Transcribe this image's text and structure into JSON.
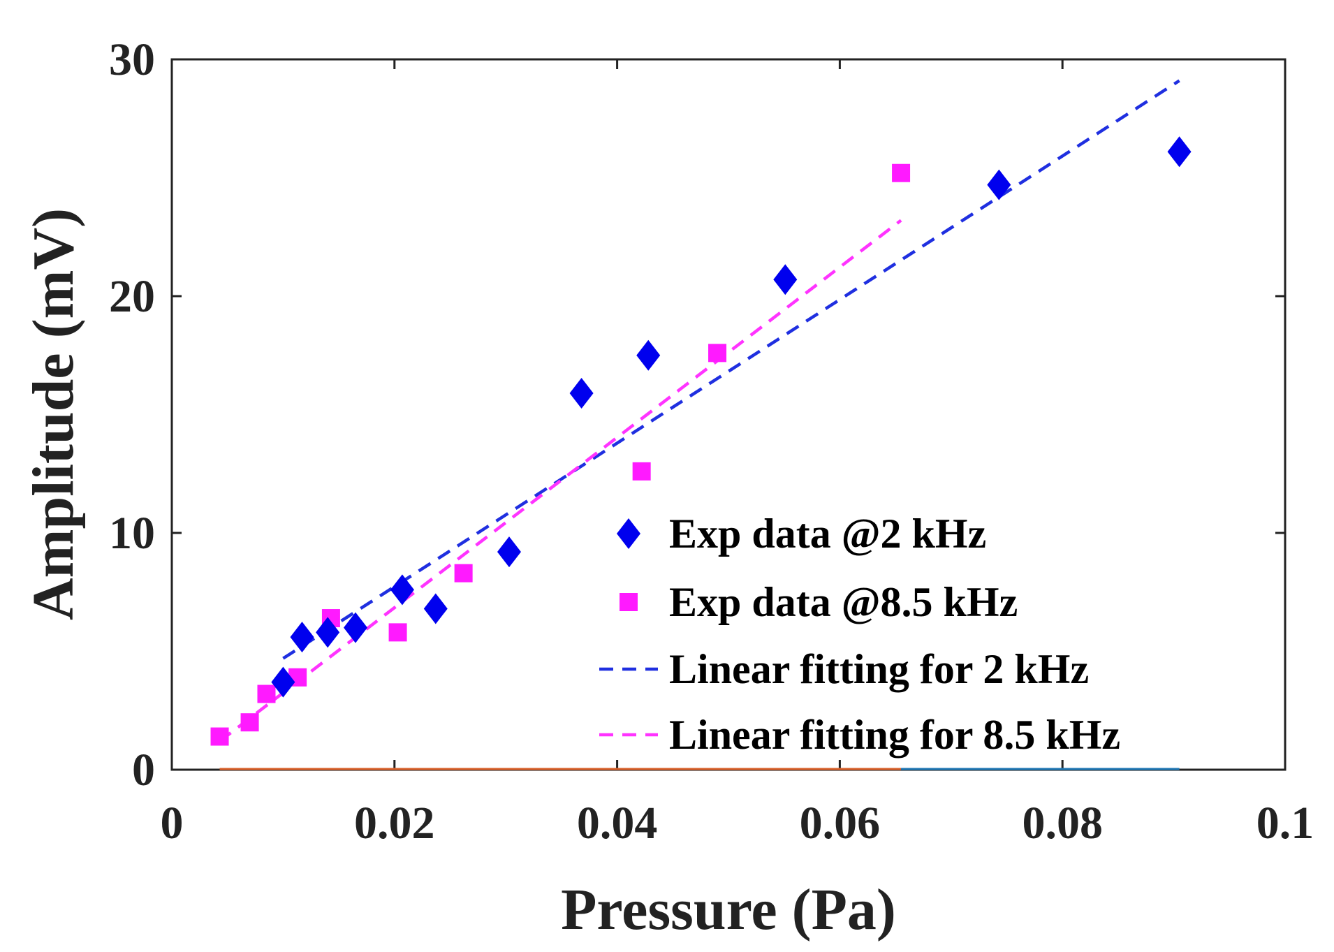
{
  "chart_data": {
    "type": "scatter",
    "title": "",
    "xlabel": "Pressure (Pa)",
    "ylabel": "Amplitude (mV)",
    "xlim": [
      0,
      0.1
    ],
    "ylim": [
      0,
      30
    ],
    "x_ticks": [
      0,
      0.02,
      0.04,
      0.06,
      0.08,
      0.1
    ],
    "x_tick_labels": [
      "0",
      "0.02",
      "0.04",
      "0.06",
      "0.08",
      "0.1"
    ],
    "y_ticks": [
      0,
      10,
      20,
      30
    ],
    "y_tick_labels": [
      "0",
      "10",
      "20",
      "30"
    ],
    "grid": false,
    "legend_position": "bottom-right",
    "series": [
      {
        "name": "Exp data @2 kHz",
        "kind": "scatter",
        "marker": "diamond",
        "color": "#0000ee",
        "points": [
          [
            0.01,
            3.7
          ],
          [
            0.0117,
            5.6
          ],
          [
            0.014,
            5.8
          ],
          [
            0.0165,
            6.0
          ],
          [
            0.0207,
            7.6
          ],
          [
            0.0237,
            6.8
          ],
          [
            0.0303,
            9.2
          ],
          [
            0.0368,
            15.9
          ],
          [
            0.0428,
            17.5
          ],
          [
            0.0551,
            20.7
          ],
          [
            0.0743,
            24.7
          ],
          [
            0.0905,
            26.1
          ]
        ]
      },
      {
        "name": "Exp data @8.5 kHz",
        "kind": "scatter",
        "marker": "square",
        "color": "#ff1aff",
        "points": [
          [
            0.0043,
            1.4
          ],
          [
            0.007,
            2.0
          ],
          [
            0.0085,
            3.2
          ],
          [
            0.0113,
            3.9
          ],
          [
            0.0143,
            6.4
          ],
          [
            0.0203,
            5.8
          ],
          [
            0.0262,
            8.3
          ],
          [
            0.0422,
            12.6
          ],
          [
            0.049,
            17.6
          ],
          [
            0.0655,
            25.2
          ]
        ]
      },
      {
        "name": "Linear fitting for 2 kHz",
        "kind": "line",
        "dash": true,
        "color": "#1f2fe0",
        "points": [
          [
            0.01,
            4.7
          ],
          [
            0.0905,
            29.1
          ]
        ]
      },
      {
        "name": "Linear fitting for 8.5 kHz",
        "kind": "line",
        "dash": true,
        "color": "#ff33ff",
        "points": [
          [
            0.0043,
            1.2
          ],
          [
            0.0655,
            23.2
          ]
        ]
      }
    ]
  }
}
